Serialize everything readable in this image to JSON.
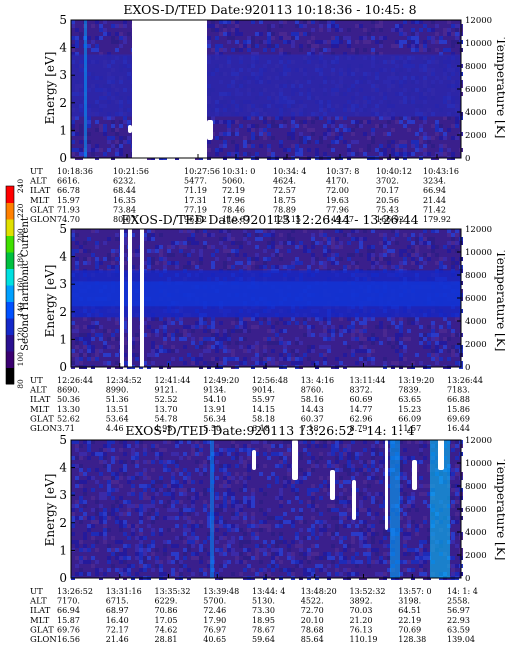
{
  "chart_data": [
    {
      "type": "heatmap",
      "title": "EXOS-D/TED   Date:920113  10:18:36 - 10:45: 8",
      "ylabel": "Energy [eV]",
      "ylabel_right": "Temperature [K]",
      "ylim": [
        0,
        5
      ],
      "ylim_right": [
        0,
        12000
      ],
      "yticks": [
        "0",
        "1",
        "2",
        "3",
        "4",
        "5"
      ],
      "yticks_right": [
        "0",
        "2000",
        "4000",
        "6000",
        "8000",
        "10000",
        "12000"
      ],
      "row_labels": [
        "UT",
        "ALT",
        "ILAT",
        "MLT",
        "GLAT",
        "GLON"
      ],
      "columns": [
        [
          "10:18:36",
          "6616.",
          "66.78",
          "15.97",
          "71.93",
          "74.70"
        ],
        [
          "10:21:56",
          "6232.",
          "68.44",
          "16.35",
          "73.84",
          "80.07"
        ],
        [
          "10:27:56",
          "5477.",
          "71.19",
          "17.31",
          "77.19",
          "96.62"
        ],
        [
          "10:31: 0",
          "5060.",
          "72.19",
          "17.96",
          "78.46",
          "110.67"
        ],
        [
          "10:34: 4",
          "4624.",
          "72.57",
          "18.75",
          "78.89",
          "129.15"
        ],
        [
          "10:37: 8",
          "4170.",
          "72.00",
          "19.63",
          "77.96",
          "149.37"
        ],
        [
          "10:40:12",
          "3702.",
          "70.17",
          "20.56",
          "75.43",
          "166.92"
        ],
        [
          "10:43:16",
          "3234.",
          "66.94",
          "21.44",
          "71.42",
          "179.92"
        ]
      ]
    },
    {
      "type": "heatmap",
      "title": "EXOS-D/TED   Date:920113  12:26:44 - 13:26:44",
      "ylabel": "Energy [eV]",
      "ylabel_right": "Temperature [K]",
      "ylim": [
        0,
        5
      ],
      "ylim_right": [
        0,
        12000
      ],
      "yticks": [
        "0",
        "1",
        "2",
        "3",
        "4",
        "5"
      ],
      "yticks_right": [
        "0",
        "2000",
        "4000",
        "6000",
        "8000",
        "10000",
        "12000"
      ],
      "row_labels": [
        "UT",
        "ALT",
        "ILAT",
        "MLT",
        "GLAT",
        "GLON"
      ],
      "columns": [
        [
          "12:26:44",
          "8690.",
          "50.36",
          "13.30",
          "52.62",
          "3.71"
        ],
        [
          "12:34:52",
          "8990.",
          "51.36",
          "13.51",
          "53.64",
          "4.46"
        ],
        [
          "12:41:44",
          "9121.",
          "52.52",
          "13.70",
          "54.78",
          "4.95"
        ],
        [
          "12:49:20",
          "9134.",
          "54.10",
          "13.91",
          "56.34",
          "5.50"
        ],
        [
          "12:56:48",
          "9014.",
          "55.97",
          "14.15",
          "58.18",
          "6.18"
        ],
        [
          "13: 4:16",
          "8760.",
          "58.16",
          "14.43",
          "60.37",
          "7.18"
        ],
        [
          "13:11:44",
          "8372.",
          "60.69",
          "14.77",
          "62.96",
          "8.79"
        ],
        [
          "13:19:20",
          "7839.",
          "63.65",
          "15.23",
          "66.09",
          "11.57"
        ],
        [
          "13:26:44",
          "7183.",
          "66.88",
          "15.86",
          "69.69",
          "16.44"
        ]
      ]
    },
    {
      "type": "heatmap",
      "title": "EXOS-D/TED   Date:920113  13:26:52 - 14: 1: 4",
      "ylabel": "Energy [eV]",
      "ylabel_right": "Temperature [K]",
      "ylim": [
        0,
        5
      ],
      "ylim_right": [
        0,
        12000
      ],
      "yticks": [
        "0",
        "1",
        "2",
        "3",
        "4",
        "5"
      ],
      "yticks_right": [
        "0",
        "2000",
        "4000",
        "6000",
        "8000",
        "10000",
        "12000"
      ],
      "row_labels": [
        "UT",
        "ALT",
        "ILAT",
        "MLT",
        "GLAT",
        "GLON"
      ],
      "columns": [
        [
          "13:26:52",
          "7170.",
          "66.94",
          "15.87",
          "69.76",
          "16.56"
        ],
        [
          "13:31:16",
          "6715.",
          "68.97",
          "16.40",
          "72.17",
          "21.46"
        ],
        [
          "13:35:32",
          "6229.",
          "70.86",
          "17.05",
          "74.62",
          "28.81"
        ],
        [
          "13:39:48",
          "5700.",
          "72.46",
          "17.90",
          "76.97",
          "40.65"
        ],
        [
          "13:44: 4",
          "5130.",
          "73.30",
          "18.95",
          "78.67",
          "59.64"
        ],
        [
          "13:48:20",
          "4522.",
          "72.70",
          "20.10",
          "78.68",
          "85.64"
        ],
        [
          "13:52:32",
          "3892.",
          "70.03",
          "21.20",
          "76.13",
          "110.19"
        ],
        [
          "13:57: 0",
          "3198.",
          "64.51",
          "22.19",
          "70.69",
          "128.38"
        ],
        [
          "14: 1: 4",
          "2558.",
          "56.97",
          "22.93",
          "63.59",
          "139.04"
        ]
      ]
    }
  ],
  "colorbar": {
    "label": "Second Harmonic Current",
    "ticks": [
      "80",
      "100",
      "120",
      "140",
      "160",
      "180",
      "200",
      "220",
      "240"
    ],
    "colors": [
      "#000000",
      "#3a0070",
      "#2a1090",
      "#1428c8",
      "#0050ff",
      "#00a0ff",
      "#00e0e0",
      "#00c040",
      "#40e000",
      "#e0e000",
      "#ff8000",
      "#ff0000"
    ]
  }
}
